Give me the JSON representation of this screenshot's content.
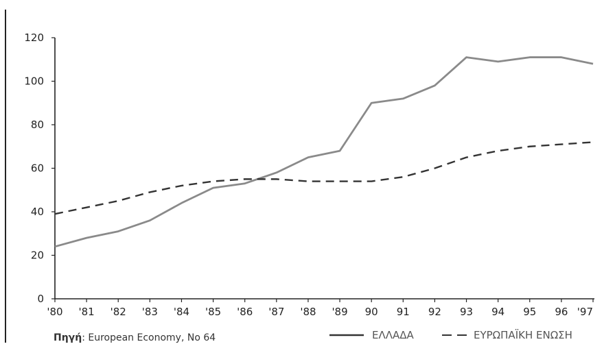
{
  "chart_data": {
    "type": "line",
    "x": [
      "'80",
      "'81",
      "'82",
      "'83",
      "'84",
      "'85",
      "'86",
      "'87",
      "'88",
      "'89",
      "90",
      "91",
      "92",
      "93",
      "94",
      "95",
      "96",
      "'97"
    ],
    "ylim": [
      0,
      120
    ],
    "yticks": [
      "0",
      "20",
      "40",
      "60",
      "80",
      "100",
      "120"
    ],
    "grid": false,
    "legend_position": "bottom-right",
    "series": [
      {
        "name": "ΕΛΛΑΔΑ",
        "style": "solid",
        "color": "#8a8a8a",
        "values": [
          24,
          28,
          31,
          36,
          44,
          51,
          53,
          58,
          65,
          68,
          90,
          92,
          98,
          111,
          109,
          111,
          111,
          108
        ]
      },
      {
        "name": "ΕΥΡΩΠΑΪΚΗ ΕΝΩΣΗ",
        "style": "dashed",
        "color": "#333333",
        "values": [
          39,
          42,
          45,
          49,
          52,
          54,
          55,
          55,
          54,
          54,
          54,
          56,
          60,
          65,
          68,
          70,
          71,
          72
        ]
      }
    ]
  },
  "source": {
    "label": "Πηγή",
    "text": ": European Economy, No 64"
  }
}
